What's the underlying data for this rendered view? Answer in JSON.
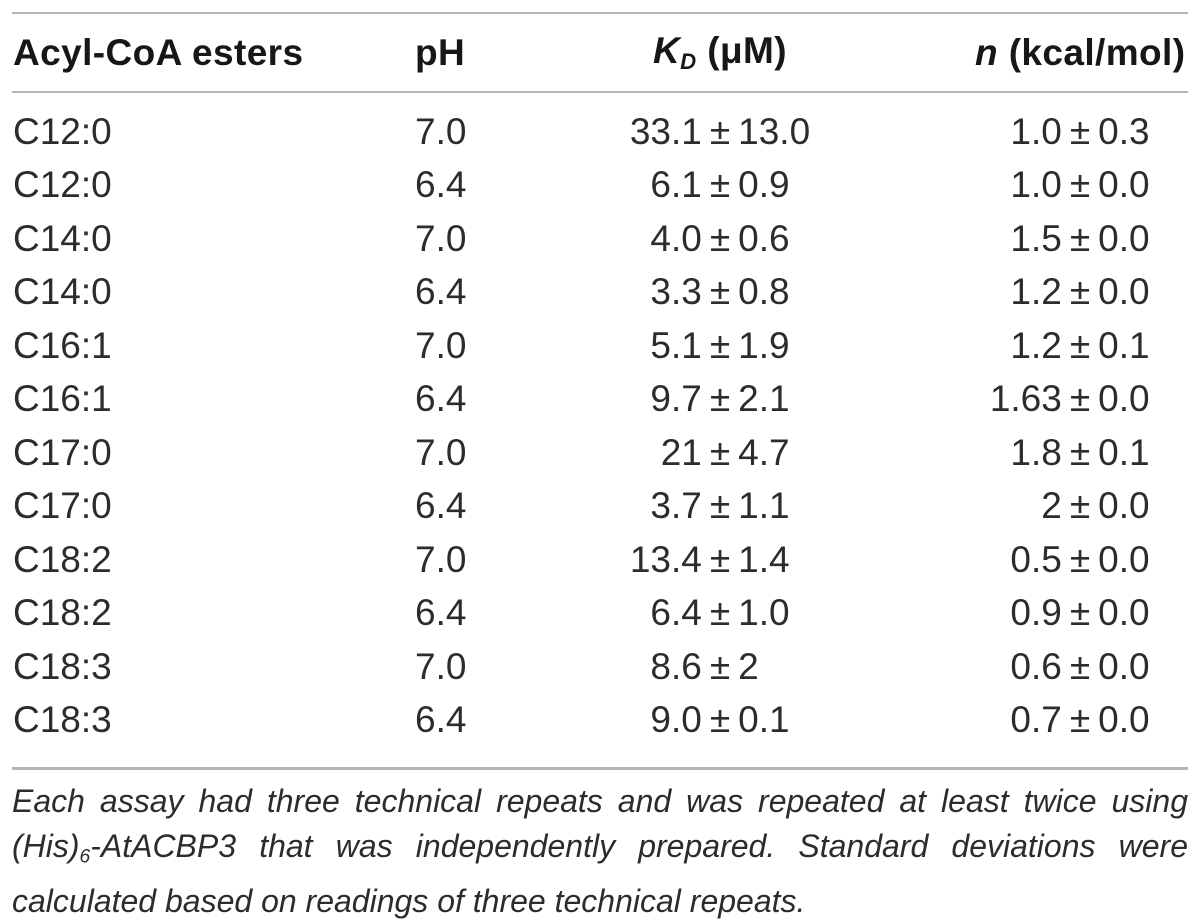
{
  "table": {
    "headers": {
      "col1": "Acyl-CoA esters",
      "col2": "pH",
      "col3": {
        "symbol": "K",
        "subscript": "D",
        "unit": " (μM)"
      },
      "col4": {
        "symbol": "n",
        "unit": " (kcal/mol)"
      }
    },
    "pm_sign": "±",
    "rows": [
      {
        "ester": "C12:0",
        "ph": "7.0",
        "kd": {
          "val": "33.1",
          "err": "13.0"
        },
        "n": {
          "val": "1.0",
          "err": "0.3"
        }
      },
      {
        "ester": "C12:0",
        "ph": "6.4",
        "kd": {
          "val": "6.1",
          "err": "0.9"
        },
        "n": {
          "val": "1.0",
          "err": "0.0"
        }
      },
      {
        "ester": "C14:0",
        "ph": "7.0",
        "kd": {
          "val": "4.0",
          "err": "0.6"
        },
        "n": {
          "val": "1.5",
          "err": "0.0"
        }
      },
      {
        "ester": "C14:0",
        "ph": "6.4",
        "kd": {
          "val": "3.3",
          "err": "0.8"
        },
        "n": {
          "val": "1.2",
          "err": "0.0"
        }
      },
      {
        "ester": "C16:1",
        "ph": "7.0",
        "kd": {
          "val": "5.1",
          "err": "1.9"
        },
        "n": {
          "val": "1.2",
          "err": "0.1"
        }
      },
      {
        "ester": "C16:1",
        "ph": "6.4",
        "kd": {
          "val": "9.7",
          "err": "2.1"
        },
        "n": {
          "val": "1.63",
          "err": "0.0"
        }
      },
      {
        "ester": "C17:0",
        "ph": "7.0",
        "kd": {
          "val": "21",
          "err": "4.7"
        },
        "n": {
          "val": "1.8",
          "err": "0.1"
        }
      },
      {
        "ester": "C17:0",
        "ph": "6.4",
        "kd": {
          "val": "3.7",
          "err": "1.1"
        },
        "n": {
          "val": "2",
          "err": "0.0"
        }
      },
      {
        "ester": "C18:2",
        "ph": "7.0",
        "kd": {
          "val": "13.4",
          "err": "1.4"
        },
        "n": {
          "val": "0.5",
          "err": "0.0"
        }
      },
      {
        "ester": "C18:2",
        "ph": "6.4",
        "kd": {
          "val": "6.4",
          "err": "1.0"
        },
        "n": {
          "val": "0.9",
          "err": "0.0"
        }
      },
      {
        "ester": "C18:3",
        "ph": "7.0",
        "kd": {
          "val": "8.6",
          "err": "2"
        },
        "n": {
          "val": "0.6",
          "err": "0.0"
        }
      },
      {
        "ester": "C18:3",
        "ph": "6.4",
        "kd": {
          "val": "9.0",
          "err": "0.1"
        },
        "n": {
          "val": "0.7",
          "err": "0.0"
        }
      }
    ]
  },
  "footnote": {
    "line1": "Each assay had three technical repeats and was repeated at least twice using",
    "line2_pre": "(His)",
    "line2_sub": "6",
    "line2_post": "-AtACBP3 that was independently prepared. Standard deviations were",
    "line3": "calculated based on readings of three technical repeats."
  },
  "colors": {
    "text": "#2d2c2b",
    "header_text": "#171717",
    "rule": "#b5b5b5",
    "background": "#ffffff"
  }
}
